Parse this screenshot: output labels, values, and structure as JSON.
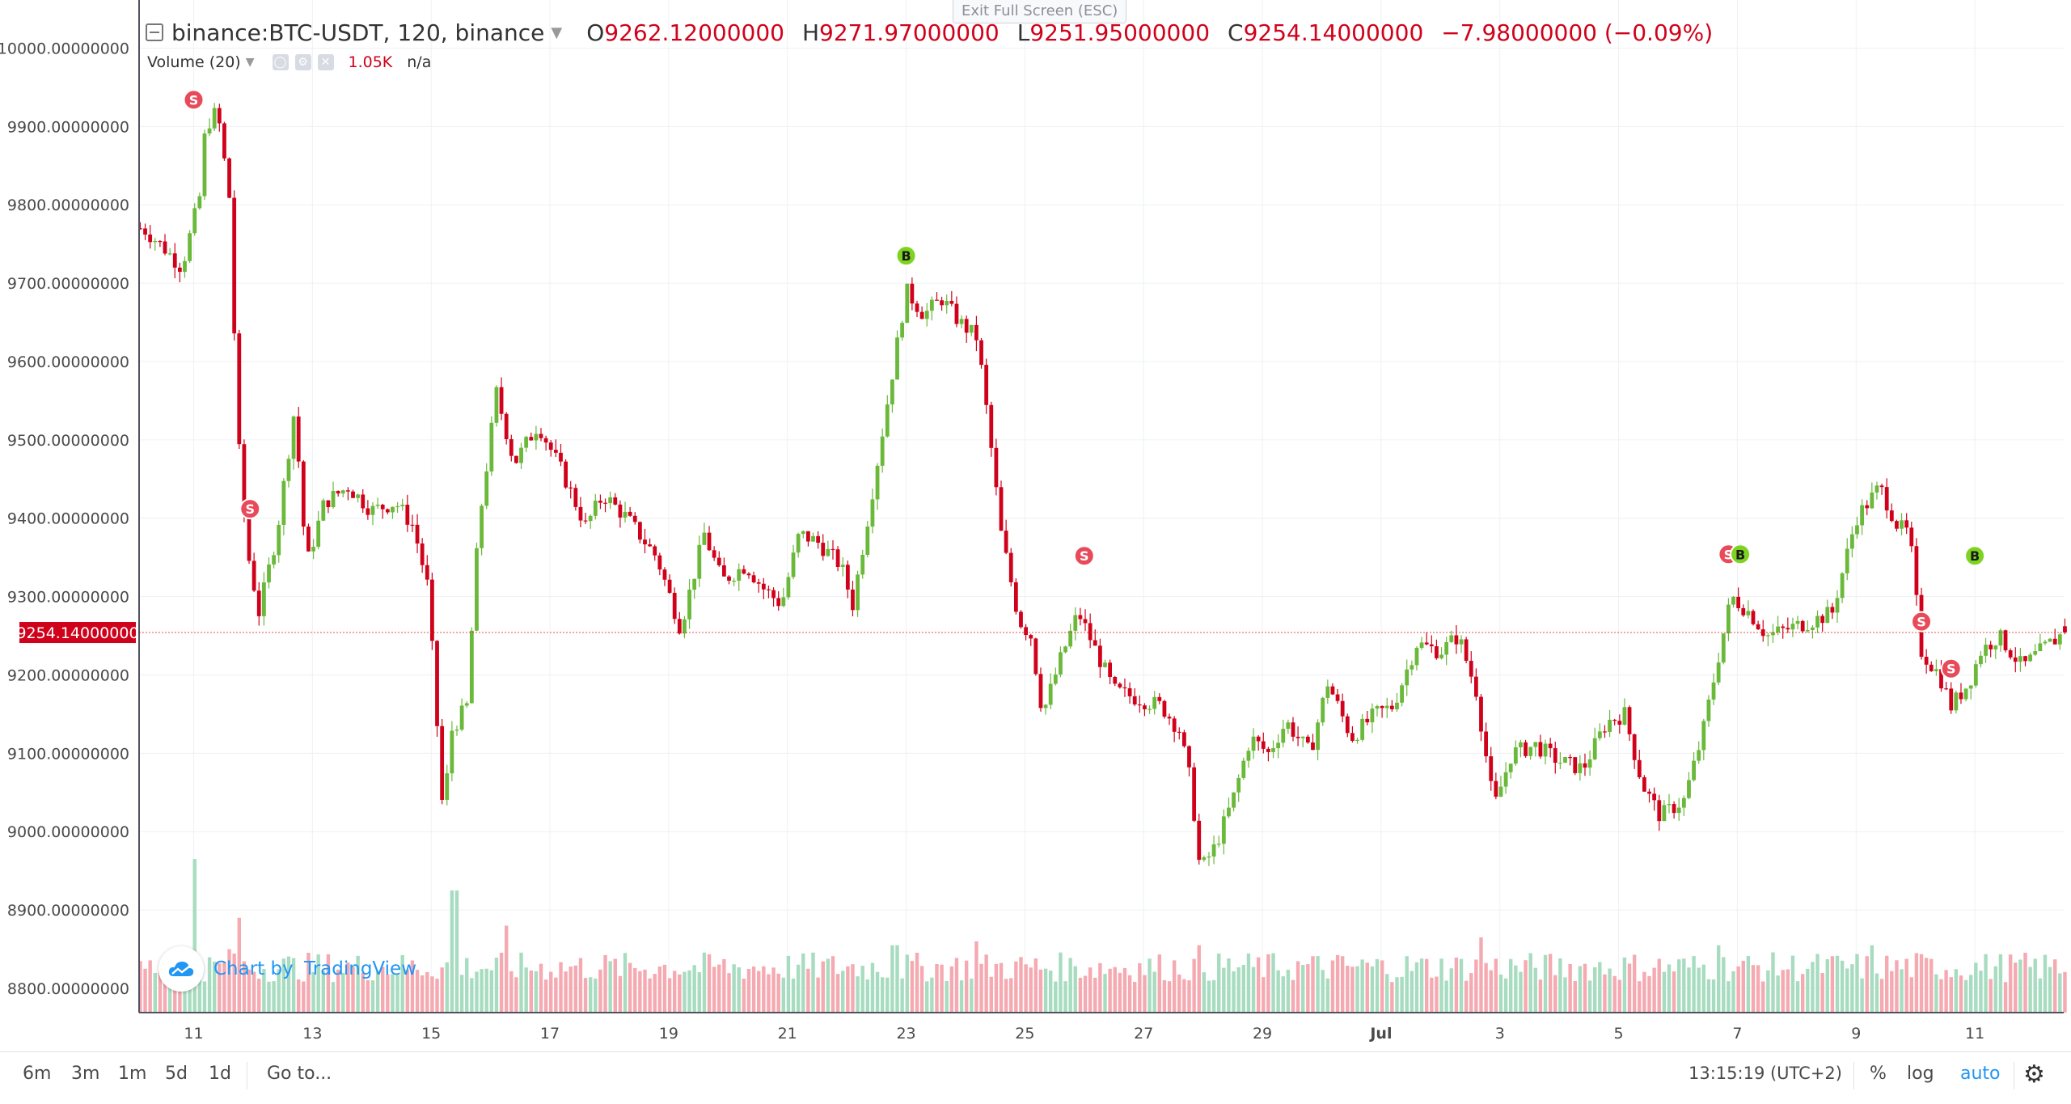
{
  "header": {
    "symbol": "binance:BTC-USDT, 120, binance",
    "o_label": "O",
    "o_value": "9262.12000000",
    "h_label": "H",
    "h_value": "9271.97000000",
    "l_label": "L",
    "l_value": "9251.95000000",
    "c_label": "C",
    "c_value": "9254.14000000",
    "change": "−7.98000000 (−0.09%)",
    "dropdown_icon": "caret-down-icon",
    "collapse_icon": "collapse-icon"
  },
  "volume_legend": {
    "label": "Volume (20)",
    "value": "1.05K",
    "na": "n/a",
    "icons": [
      "eye-icon",
      "gear-icon",
      "close-icon"
    ]
  },
  "tooltip": "Exit Full Screen (ESC)",
  "watermark": {
    "text_plain": "Chart by ",
    "text_brand": "TradingView",
    "icon": "tradingview-cloud-icon"
  },
  "price_label": "9254.14000000",
  "bottom_bar": {
    "timeframes": [
      "6m",
      "3m",
      "1m",
      "5d",
      "1d"
    ],
    "goto": "Go to...",
    "clock": "13:15:19 (UTC+2)",
    "percent": "%",
    "log": "log",
    "auto": "auto",
    "settings_icon": "gear-icon"
  },
  "colors": {
    "up": "#6ab93b",
    "down": "#d0021b",
    "vol_up": "#a8dcc0",
    "vol_down": "#f5a9b1",
    "price_line": "#e02020",
    "accent": "#2196f3"
  },
  "chart_data": {
    "type": "candlestick",
    "title": "binance:BTC-USDT, 120, binance",
    "ylim": [
      8770,
      10035
    ],
    "y_ticks": [
      8800,
      8900,
      9000,
      9100,
      9200,
      9300,
      9400,
      9500,
      9600,
      9700,
      9800,
      9900,
      10000
    ],
    "y_tick_labels": [
      "8800.00000000",
      "8900.00000000",
      "9000.00000000",
      "9100.00000000",
      "9200.00000000",
      "9300.00000000",
      "9400.00000000",
      "9500.00000000",
      "9600.00000000",
      "9700.00000000",
      "9800.00000000",
      "9900.00000000",
      "10000.00000000"
    ],
    "x_tick_labels": [
      "11",
      "13",
      "15",
      "17",
      "19",
      "21",
      "23",
      "25",
      "27",
      "29",
      "Jul",
      "3",
      "5",
      "7",
      "9",
      "11"
    ],
    "x_tick_days": [
      11,
      13,
      15,
      17,
      19,
      21,
      23,
      25,
      27,
      29,
      31,
      33,
      35,
      37,
      39,
      41
    ],
    "x_range_days": [
      10.1,
      42.6
    ],
    "last_price": 9254.14,
    "grid": true,
    "anchors": [
      [
        10.15,
        9770
      ],
      [
        10.5,
        9745
      ],
      [
        10.8,
        9720
      ],
      [
        11.1,
        9810
      ],
      [
        11.2,
        9900
      ],
      [
        11.4,
        9920
      ],
      [
        11.6,
        9810
      ],
      [
        11.75,
        9500
      ],
      [
        11.9,
        9360
      ],
      [
        12.1,
        9280
      ],
      [
        12.4,
        9380
      ],
      [
        12.7,
        9540
      ],
      [
        12.9,
        9340
      ],
      [
        13.2,
        9420
      ],
      [
        13.6,
        9440
      ],
      [
        14.0,
        9410
      ],
      [
        14.4,
        9420
      ],
      [
        14.7,
        9390
      ],
      [
        14.95,
        9310
      ],
      [
        15.2,
        9020
      ],
      [
        15.35,
        9130
      ],
      [
        15.6,
        9160
      ],
      [
        15.8,
        9390
      ],
      [
        16.1,
        9560
      ],
      [
        16.4,
        9470
      ],
      [
        16.8,
        9520
      ],
      [
        17.2,
        9460
      ],
      [
        17.6,
        9390
      ],
      [
        17.9,
        9430
      ],
      [
        18.3,
        9400
      ],
      [
        18.8,
        9350
      ],
      [
        19.2,
        9260
      ],
      [
        19.6,
        9380
      ],
      [
        19.9,
        9320
      ],
      [
        20.3,
        9340
      ],
      [
        20.6,
        9310
      ],
      [
        20.9,
        9290
      ],
      [
        21.2,
        9380
      ],
      [
        21.5,
        9370
      ],
      [
        21.9,
        9340
      ],
      [
        22.1,
        9290
      ],
      [
        22.4,
        9420
      ],
      [
        22.8,
        9600
      ],
      [
        23.0,
        9690
      ],
      [
        23.3,
        9660
      ],
      [
        23.6,
        9680
      ],
      [
        23.9,
        9650
      ],
      [
        24.2,
        9630
      ],
      [
        24.4,
        9510
      ],
      [
        24.6,
        9380
      ],
      [
        24.9,
        9270
      ],
      [
        25.1,
        9250
      ],
      [
        25.3,
        9150
      ],
      [
        25.6,
        9220
      ],
      [
        25.9,
        9280
      ],
      [
        26.2,
        9230
      ],
      [
        26.5,
        9180
      ],
      [
        26.9,
        9170
      ],
      [
        27.3,
        9160
      ],
      [
        27.6,
        9130
      ],
      [
        27.8,
        9060
      ],
      [
        27.95,
        8950
      ],
      [
        28.2,
        8980
      ],
      [
        28.5,
        9040
      ],
      [
        28.8,
        9120
      ],
      [
        29.1,
        9100
      ],
      [
        29.4,
        9140
      ],
      [
        29.8,
        9100
      ],
      [
        30.1,
        9190
      ],
      [
        30.5,
        9120
      ],
      [
        30.9,
        9150
      ],
      [
        31.2,
        9160
      ],
      [
        31.6,
        9240
      ],
      [
        32.0,
        9230
      ],
      [
        32.3,
        9250
      ],
      [
        32.6,
        9180
      ],
      [
        32.9,
        9030
      ],
      [
        33.2,
        9100
      ],
      [
        33.6,
        9110
      ],
      [
        34.0,
        9090
      ],
      [
        34.4,
        9080
      ],
      [
        34.8,
        9140
      ],
      [
        35.1,
        9150
      ],
      [
        35.4,
        9060
      ],
      [
        35.7,
        9020
      ],
      [
        36.1,
        9040
      ],
      [
        36.4,
        9120
      ],
      [
        36.7,
        9230
      ],
      [
        36.9,
        9300
      ],
      [
        37.2,
        9280
      ],
      [
        37.5,
        9250
      ],
      [
        37.9,
        9260
      ],
      [
        38.3,
        9270
      ],
      [
        38.6,
        9280
      ],
      [
        39.0,
        9400
      ],
      [
        39.4,
        9440
      ],
      [
        39.7,
        9390
      ],
      [
        39.9,
        9380
      ],
      [
        40.1,
        9230
      ],
      [
        40.4,
        9200
      ],
      [
        40.6,
        9160
      ],
      [
        40.9,
        9190
      ],
      [
        41.1,
        9230
      ],
      [
        41.4,
        9250
      ],
      [
        41.8,
        9210
      ],
      [
        42.1,
        9230
      ],
      [
        42.5,
        9254
      ]
    ],
    "volume_spikes": [
      [
        11.0,
        8965
      ],
      [
        11.75,
        8890
      ],
      [
        11.6,
        8850
      ],
      [
        15.4,
        8925
      ],
      [
        16.3,
        8880
      ],
      [
        22.8,
        8855
      ],
      [
        24.2,
        8860
      ],
      [
        27.95,
        8855
      ],
      [
        32.7,
        8865
      ],
      [
        36.7,
        8855
      ],
      [
        39.3,
        8855
      ],
      [
        40.0,
        8845
      ]
    ],
    "markers": [
      {
        "type": "S",
        "day": 11.0,
        "price": 9934
      },
      {
        "type": "S",
        "day": 11.95,
        "price": 9412
      },
      {
        "type": "B",
        "day": 23.0,
        "price": 9735
      },
      {
        "type": "S",
        "day": 26.0,
        "price": 9352
      },
      {
        "type": "S",
        "day": 36.85,
        "price": 9354
      },
      {
        "type": "B",
        "day": 37.05,
        "price": 9354
      },
      {
        "type": "S",
        "day": 40.1,
        "price": 9268
      },
      {
        "type": "S",
        "day": 40.6,
        "price": 9208
      },
      {
        "type": "B",
        "day": 41.0,
        "price": 9352
      }
    ]
  }
}
